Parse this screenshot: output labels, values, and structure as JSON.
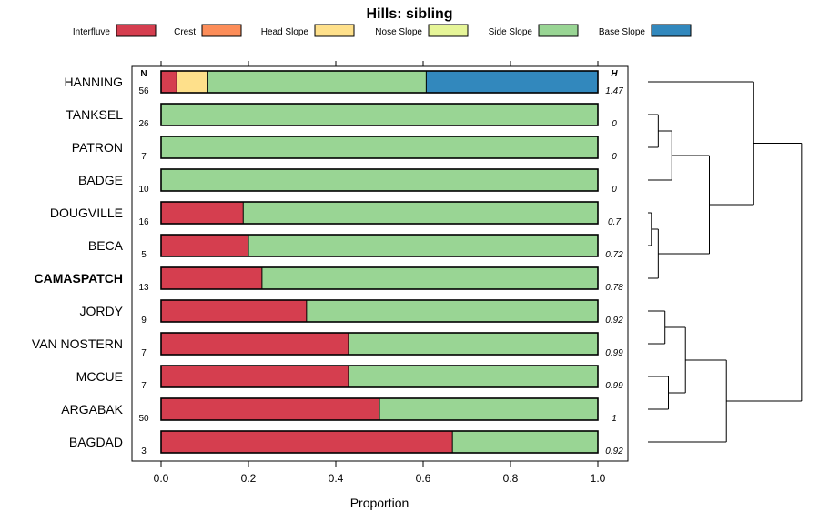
{
  "chart_data": {
    "type": "bar",
    "subtype": "stacked-horizontal-with-dendrogram",
    "title": "Hills: sibling",
    "xlabel": "Proportion",
    "xlim": [
      0,
      1
    ],
    "x_ticks": [
      "0.0",
      "0.2",
      "0.4",
      "0.6",
      "0.8",
      "1.0"
    ],
    "legend_position": "top",
    "n_header": "N",
    "h_header": "H",
    "highlighted_category": "CAMASPATCH",
    "legend": [
      {
        "name": "Interfluve",
        "color": "#d53e4f"
      },
      {
        "name": "Crest",
        "color": "#fc8d59"
      },
      {
        "name": "Head Slope",
        "color": "#fee08b"
      },
      {
        "name": "Nose Slope",
        "color": "#e6f598"
      },
      {
        "name": "Side Slope",
        "color": "#99d594"
      },
      {
        "name": "Base Slope",
        "color": "#3288bd"
      }
    ],
    "categories": [
      "HANNING",
      "TANKSEL",
      "PATRON",
      "BADGE",
      "DOUGVILLE",
      "BECA",
      "CAMASPATCH",
      "JORDY",
      "VAN NOSTERN",
      "MCCUE",
      "ARGABAK",
      "BAGDAD"
    ],
    "n_values": [
      "56",
      "26",
      "7",
      "10",
      "16",
      "5",
      "13",
      "9",
      "7",
      "7",
      "50",
      "3"
    ],
    "h_values": [
      "1.47",
      "0",
      "0",
      "0",
      "0.7",
      "0.72",
      "0.78",
      "0.92",
      "0.99",
      "0.99",
      "1",
      "0.92"
    ],
    "series": [
      {
        "name": "Interfluve",
        "values": [
          0.036,
          0,
          0,
          0,
          0.188,
          0.2,
          0.231,
          0.333,
          0.429,
          0.429,
          0.5,
          0.667
        ]
      },
      {
        "name": "Crest",
        "values": [
          0,
          0,
          0,
          0,
          0,
          0,
          0,
          0,
          0,
          0,
          0,
          0
        ]
      },
      {
        "name": "Head Slope",
        "values": [
          0.071,
          0,
          0,
          0,
          0,
          0,
          0,
          0,
          0,
          0,
          0,
          0
        ]
      },
      {
        "name": "Nose Slope",
        "values": [
          0,
          0,
          0,
          0,
          0,
          0,
          0,
          0,
          0,
          0,
          0,
          0
        ]
      },
      {
        "name": "Side Slope",
        "values": [
          0.5,
          1,
          1,
          1,
          0.812,
          0.8,
          0.769,
          0.667,
          0.571,
          0.571,
          0.5,
          0.333
        ]
      },
      {
        "name": "Base Slope",
        "values": [
          0.393,
          0,
          0,
          0,
          0,
          0,
          0,
          0,
          0,
          0,
          0,
          0
        ]
      }
    ],
    "dendrogram": {
      "leaves": [
        "HANNING",
        "TANKSEL",
        "PATRON",
        "BADGE",
        "DOUGVILLE",
        "BECA",
        "CAMASPATCH",
        "JORDY",
        "VAN NOSTERN",
        "MCCUE",
        "ARGABAK",
        "BAGDAD"
      ],
      "merges": [
        {
          "left": "TANKSEL",
          "right": "PATRON",
          "height": 0.063
        },
        {
          "left": "m0",
          "right": "BADGE",
          "height": 0.146
        },
        {
          "left": "DOUGVILLE",
          "right": "BECA",
          "height": 0.021
        },
        {
          "left": "m2",
          "right": "CAMASPATCH",
          "height": 0.063
        },
        {
          "left": "JORDY",
          "right": "VAN NOSTERN",
          "height": 0.104
        },
        {
          "left": "MCCUE",
          "right": "ARGABAK",
          "height": 0.125
        },
        {
          "left": "m4",
          "right": "m5",
          "height": 0.229
        },
        {
          "left": "m1",
          "right": "m3",
          "height": 0.375
        },
        {
          "left": "m6",
          "right": "BAGDAD",
          "height": 0.479
        },
        {
          "left": "HANNING",
          "right": "m7",
          "height": 0.646
        },
        {
          "left": "m9",
          "right": "m8",
          "height": 0.938
        }
      ]
    }
  }
}
